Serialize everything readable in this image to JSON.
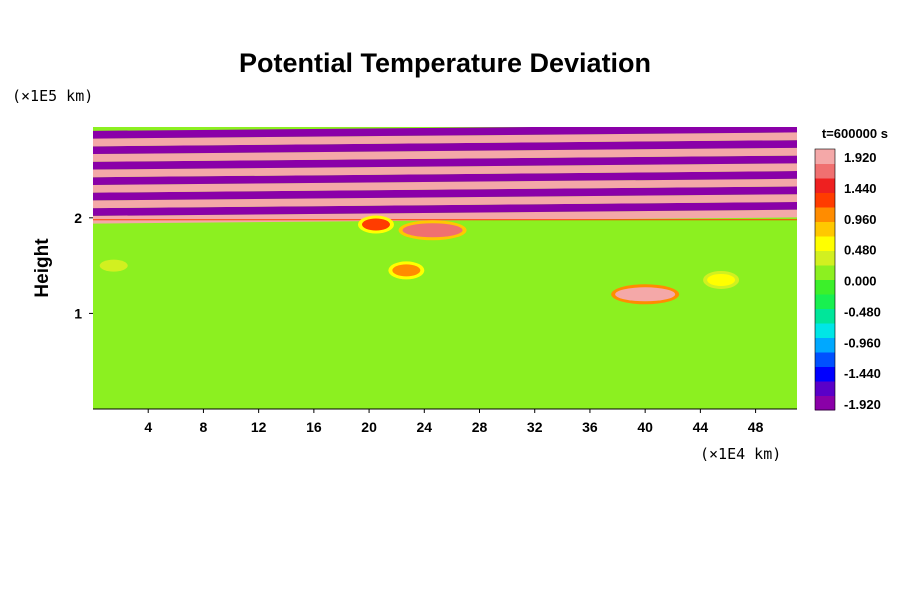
{
  "chart_data": {
    "type": "heatmap",
    "title": "Potential Temperature Deviation",
    "ylabel": "Height",
    "y_unit": "(×1E5 km)",
    "x_unit": "(×1E4 km)",
    "time_label": "t=600000 s",
    "xlim": [
      0,
      51
    ],
    "ylim": [
      0,
      2.95
    ],
    "x_ticks": [
      "4",
      "8",
      "12",
      "16",
      "20",
      "24",
      "28",
      "32",
      "36",
      "40",
      "44",
      "48"
    ],
    "y_ticks": [
      "1",
      "2"
    ],
    "colorbar": {
      "vmin": -1.92,
      "vmax": 1.92,
      "tick_labels": [
        "1.920",
        "1.440",
        "0.960",
        "0.480",
        "0.000",
        "-0.480",
        "-0.960",
        "-1.440",
        "-1.920"
      ],
      "colors": [
        "#8a00a8",
        "#5a00c8",
        "#0000ff",
        "#0050ff",
        "#00a8ff",
        "#00e6e6",
        "#00e69a",
        "#18f050",
        "#3cf02a",
        "#8cf020",
        "#d2f020",
        "#ffff00",
        "#ffc800",
        "#ff8c00",
        "#ff3c00",
        "#ee2020",
        "#f07070",
        "#f4a8a8"
      ]
    },
    "field": {
      "lower_layer": {
        "y_range": [
          0,
          1.98
        ],
        "typical_value": 0.0
      },
      "upper_layer": {
        "y_range": [
          1.98,
          2.95
        ],
        "alternating_band_values": [
          1.92,
          -1.92
        ],
        "band_count": 12
      },
      "features": [
        {
          "x": 40,
          "y": 1.2,
          "value": 1.9
        },
        {
          "x": 45.5,
          "y": 1.35,
          "value": 0.6
        },
        {
          "x": 24.6,
          "y": 1.87,
          "value": 1.6
        },
        {
          "x": 22.7,
          "y": 1.45,
          "value": 0.9
        },
        {
          "x": 20.5,
          "y": 1.93,
          "value": 1.1
        },
        {
          "x": 1.5,
          "y": 1.5,
          "value": 0.4
        }
      ]
    }
  }
}
